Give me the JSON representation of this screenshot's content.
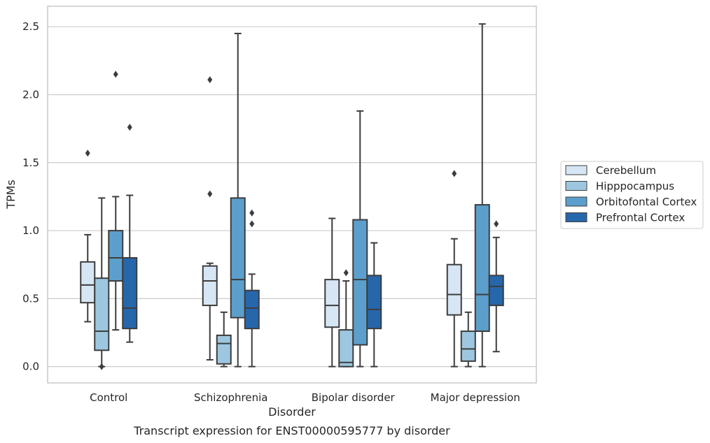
{
  "caption": "Transcript expression for ENST00000595777 by disorder",
  "chart_data": {
    "type": "box",
    "xlabel": "Disorder",
    "ylabel": "TPMs",
    "ylim": [
      -0.12,
      2.65
    ],
    "yticks": [
      "0.0",
      "0.5",
      "1.0",
      "1.5",
      "2.0",
      "2.5"
    ],
    "grid": "horizontal",
    "legend_position": "right",
    "categories": [
      "Control",
      "Schizophrenia",
      "Bipolar disorder",
      "Major depression"
    ],
    "series": [
      {
        "name": "Cerebellum",
        "color": "#d6e6f4",
        "boxes": [
          {
            "q1": 0.47,
            "median": 0.6,
            "q3": 0.77,
            "whisker_low": 0.33,
            "whisker_high": 0.97,
            "outliers": [
              1.57
            ]
          },
          {
            "q1": 0.45,
            "median": 0.63,
            "q3": 0.74,
            "whisker_low": 0.05,
            "whisker_high": 0.76,
            "outliers": [
              2.11,
              1.27
            ]
          },
          {
            "q1": 0.29,
            "median": 0.45,
            "q3": 0.64,
            "whisker_low": 0.0,
            "whisker_high": 1.09,
            "outliers": []
          },
          {
            "q1": 0.38,
            "median": 0.53,
            "q3": 0.75,
            "whisker_low": 0.0,
            "whisker_high": 0.94,
            "outliers": [
              1.42
            ]
          }
        ]
      },
      {
        "name": "Hipppocampus",
        "color": "#9dc7e0",
        "boxes": [
          {
            "q1": 0.12,
            "median": 0.26,
            "q3": 0.65,
            "whisker_low": 0.0,
            "whisker_high": 1.24,
            "outliers": [
              0.0
            ]
          },
          {
            "q1": 0.02,
            "median": 0.17,
            "q3": 0.23,
            "whisker_low": 0.0,
            "whisker_high": 0.4,
            "outliers": []
          },
          {
            "q1": 0.0,
            "median": 0.03,
            "q3": 0.27,
            "whisker_low": 0.0,
            "whisker_high": 0.63,
            "outliers": [
              0.69
            ]
          },
          {
            "q1": 0.04,
            "median": 0.13,
            "q3": 0.26,
            "whisker_low": 0.0,
            "whisker_high": 0.4,
            "outliers": []
          }
        ]
      },
      {
        "name": "Orbitofontal Cortex",
        "color": "#5c9fcc",
        "boxes": [
          {
            "q1": 0.63,
            "median": 0.8,
            "q3": 1.0,
            "whisker_low": 0.27,
            "whisker_high": 1.25,
            "outliers": [
              2.15
            ]
          },
          {
            "q1": 0.36,
            "median": 0.64,
            "q3": 1.24,
            "whisker_low": 0.0,
            "whisker_high": 2.45,
            "outliers": []
          },
          {
            "q1": 0.16,
            "median": 0.64,
            "q3": 1.08,
            "whisker_low": 0.0,
            "whisker_high": 1.88,
            "outliers": []
          },
          {
            "q1": 0.26,
            "median": 0.53,
            "q3": 1.19,
            "whisker_low": 0.0,
            "whisker_high": 2.52,
            "outliers": []
          }
        ]
      },
      {
        "name": "Prefrontal Cortex",
        "color": "#2667ac",
        "boxes": [
          {
            "q1": 0.28,
            "median": 0.43,
            "q3": 0.8,
            "whisker_low": 0.18,
            "whisker_high": 1.26,
            "outliers": [
              1.76
            ]
          },
          {
            "q1": 0.28,
            "median": 0.43,
            "q3": 0.56,
            "whisker_low": 0.0,
            "whisker_high": 0.68,
            "outliers": [
              1.13,
              1.05
            ]
          },
          {
            "q1": 0.28,
            "median": 0.42,
            "q3": 0.67,
            "whisker_low": 0.0,
            "whisker_high": 0.91,
            "outliers": []
          },
          {
            "q1": 0.45,
            "median": 0.59,
            "q3": 0.67,
            "whisker_low": 0.11,
            "whisker_high": 0.95,
            "outliers": [
              1.05
            ]
          }
        ]
      }
    ]
  }
}
